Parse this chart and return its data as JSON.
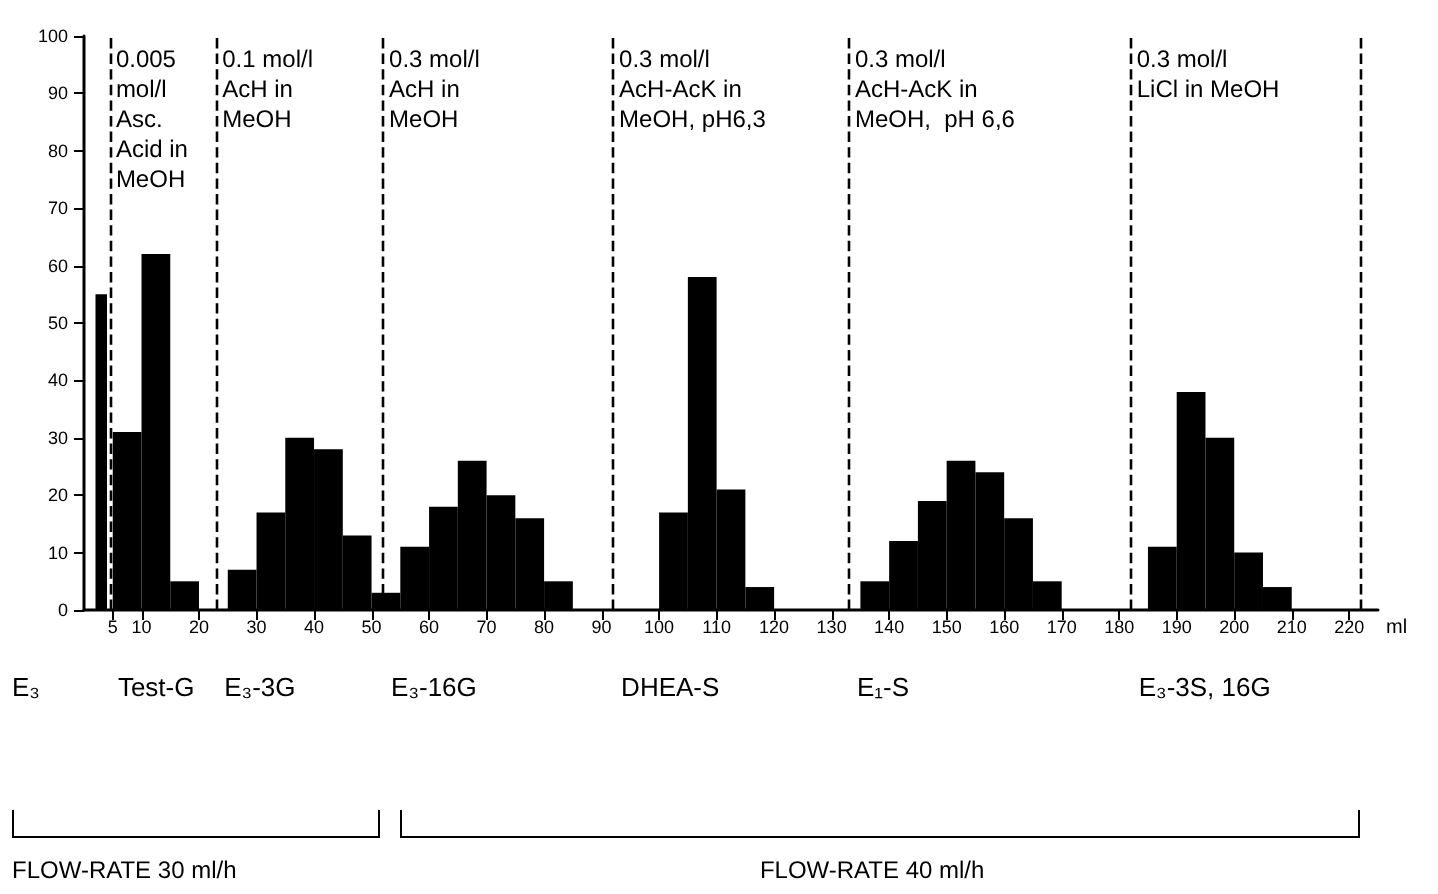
{
  "chart_data": {
    "type": "histogram",
    "xlabel": "ml",
    "bins": [
      2,
      4,
      5,
      10,
      15,
      20,
      25,
      30,
      35,
      40,
      45,
      50,
      55,
      60,
      65,
      70,
      75,
      80,
      85,
      100,
      105,
      110,
      115,
      120,
      135,
      140,
      145,
      150,
      155,
      160,
      165,
      170,
      185,
      190,
      195,
      200,
      205,
      210
    ],
    "values": [
      55,
      0,
      31,
      62,
      5,
      0,
      7,
      17,
      30,
      28,
      13,
      3,
      11,
      18,
      26,
      20,
      16,
      5,
      0,
      17,
      58,
      21,
      4,
      0,
      5,
      12,
      19,
      26,
      24,
      16,
      5,
      0,
      11,
      38,
      30,
      10,
      4
    ],
    "color": "#000000",
    "xlim": [
      0,
      225
    ],
    "xticks": [
      5,
      10,
      20,
      30,
      40,
      50,
      60,
      70,
      80,
      90,
      100,
      110,
      120,
      130,
      140,
      150,
      160,
      170,
      180,
      190,
      200,
      210,
      220
    ],
    "ylim": [
      0,
      100
    ],
    "yticks": [
      0,
      10,
      20,
      30,
      40,
      50,
      60,
      70,
      80,
      90,
      100
    ],
    "grid": false,
    "ref_lines": [
      {
        "axis": "x",
        "value": 4.5,
        "line_style": "dashed"
      },
      {
        "axis": "x",
        "value": 23,
        "line_style": "dashed"
      },
      {
        "axis": "x",
        "value": 52,
        "line_style": "dashed"
      },
      {
        "axis": "x",
        "value": 92,
        "line_style": "dashed"
      },
      {
        "axis": "x",
        "value": 133,
        "line_style": "dashed"
      },
      {
        "axis": "x",
        "value": 182,
        "line_style": "dashed"
      },
      {
        "axis": "x",
        "value": 222,
        "line_style": "dashed"
      }
    ],
    "annotations": [
      "0.005\nmol/l\nAsc.\nAcid in\nMeOH",
      "0.1 mol/l\nAcH in\nMeOH",
      "0.3 mol/l\nAcH in\nMeOH",
      "0.3 mol/l\nAcH-AcK in\nMeOH, pH6,3",
      "0.3 mol/l\nAcH-AcK in\nMeOH,  pH 6,6",
      "0.3 mol/l\nLiCl in MeOH",
      "E₃",
      "Test-G",
      "E₃-3G",
      "E₃-16G",
      "DHEA-S",
      "E₁-S",
      "E₃-3S, 16G",
      "FLOW-RATE 30 ml/h",
      "FLOW-RATE 40 ml/h"
    ]
  }
}
